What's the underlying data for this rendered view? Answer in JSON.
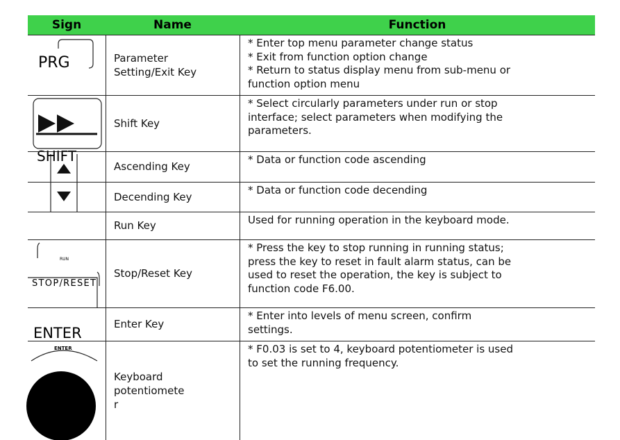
{
  "table": {
    "header": [
      "Sign",
      "Name",
      "Function"
    ],
    "rows": [
      {
        "sign": "PRG",
        "name": [
          "Parameter",
          "Setting/Exit Key"
        ],
        "function": [
          "* Enter top menu parameter change status",
          "* Exit from function option change",
          "* Return to status display menu from sub-menu or",
          "function option menu"
        ]
      },
      {
        "sign": "SHIFT",
        "name": [
          "Shift Key"
        ],
        "function": [
          "* Select circularly parameters under run or stop",
          "interface; select parameters when modifying the",
          "parameters."
        ]
      },
      {
        "name": [
          "Ascending Key"
        ],
        "function": [
          "* Data or function code ascending"
        ]
      },
      {
        "name": [
          "Decending Key"
        ],
        "function": [
          "* Data or function code decending"
        ]
      },
      {
        "sign": "RUN",
        "name": [
          "Run Key"
        ],
        "function": [
          "Used for running operation in the keyboard mode."
        ]
      },
      {
        "sign": "STOP/RESET",
        "name": [
          "Stop/Reset Key"
        ],
        "function": [
          "* Press the key to stop running in running status;",
          "press the key to reset in fault alarm status, can be",
          "used to reset the operation, the key is subject to",
          "function code F6.00."
        ]
      },
      {
        "sign": "ENTER",
        "name": [
          "Enter Key"
        ],
        "function": [
          "* Enter into levels of menu screen, confirm",
          "settings."
        ]
      },
      {
        "sign": "ENTER",
        "name": [
          "Keyboard",
          "potentiomete",
          "r"
        ],
        "function": [
          "* F0.03 is set to 4, keyboard potentiometer is used",
          "to set the running frequency."
        ]
      }
    ]
  }
}
